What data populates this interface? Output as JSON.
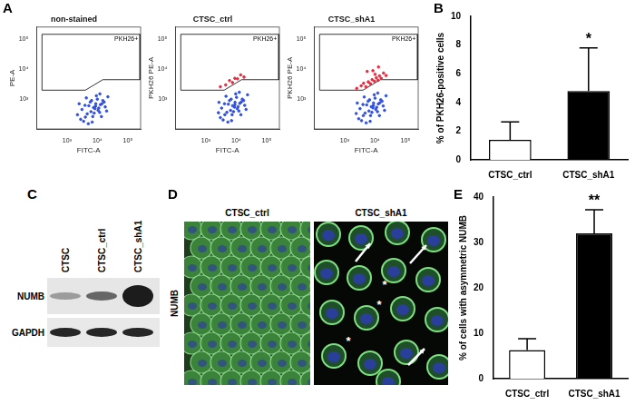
{
  "panel_labels": [
    "A",
    "B",
    "C",
    "D",
    "E"
  ],
  "chart_data": [
    {
      "type": "scatter",
      "title": "non-stained",
      "x_label": "FITC-A",
      "y_label": "PE-A",
      "log": true,
      "grid": false,
      "xlim": [
        100,
        262144
      ],
      "ylim": [
        100,
        262144
      ],
      "xticks": [
        {
          "value": 1000,
          "label": "10³"
        },
        {
          "value": 10000,
          "label": "10⁴"
        },
        {
          "value": 100000,
          "label": "10⁵"
        }
      ],
      "yticks": [
        {
          "value": 1000,
          "label": "10³"
        },
        {
          "value": 10000,
          "label": "10⁴"
        },
        {
          "value": 100000,
          "label": "10⁵"
        }
      ],
      "gate": {
        "label": "PKH26+",
        "x": [
          150,
          250000,
          250000,
          15000,
          4000,
          150,
          150
        ],
        "y": [
          150000,
          150000,
          4500,
          4500,
          2000,
          2000,
          150000
        ]
      },
      "series": [
        {
          "color": "#3050e0",
          "x": [
            2200,
            3100,
            4000,
            5200,
            6100,
            7400,
            8800,
            10500,
            12500,
            15000,
            18000,
            22000,
            3500,
            4600,
            5800,
            7000,
            8300,
            9900,
            11800,
            14000,
            2800,
            3900,
            5000,
            6400,
            7800,
            9200,
            11000,
            13500,
            16500,
            4300,
            6700,
            8600,
            12000,
            20000,
            2500
          ],
          "values": [
            300,
            450,
            250,
            600,
            380,
            520,
            700,
            420,
            650,
            900,
            550,
            1200,
            180,
            320,
            800,
            260,
            480,
            1000,
            360,
            700,
            210,
            620,
            150,
            900,
            340,
            1300,
            500,
            260,
            800,
            1100,
            170,
            580,
            1500,
            400,
            700
          ]
        }
      ]
    },
    {
      "type": "scatter",
      "title": "CTSC_ctrl",
      "x_label": "FITC-A",
      "y_label": "PKH26 PE-A",
      "log": true,
      "grid": false,
      "xlim": [
        100,
        262144
      ],
      "ylim": [
        100,
        262144
      ],
      "xticks": [
        {
          "value": 1000,
          "label": "10³"
        },
        {
          "value": 10000,
          "label": "10⁴"
        },
        {
          "value": 100000,
          "label": "10⁵"
        }
      ],
      "yticks": [
        {
          "value": 1000,
          "label": "10³"
        },
        {
          "value": 10000,
          "label": "10⁴"
        },
        {
          "value": 100000,
          "label": "10⁵"
        }
      ],
      "gate": {
        "label": "PKH26+",
        "x": [
          150,
          250000,
          250000,
          15000,
          4000,
          150,
          150
        ],
        "y": [
          150000,
          150000,
          4500,
          4500,
          2000,
          2000,
          150000
        ]
      },
      "series": [
        {
          "color": "#3050e0",
          "x": [
            2600,
            3300,
            4200,
            5500,
            6500,
            7600,
            9100,
            10800,
            13000,
            15800,
            19000,
            23500,
            3700,
            4900,
            6000,
            7300,
            8700,
            10200,
            12200,
            14600,
            3000,
            4100,
            5300,
            6800,
            8100,
            9600,
            11500,
            14200,
            17500,
            4600,
            7000,
            9000,
            12600,
            21000,
            2700
          ],
          "values": [
            350,
            500,
            300,
            680,
            420,
            600,
            780,
            480,
            720,
            1000,
            620,
            1400,
            200,
            360,
            900,
            300,
            540,
            1150,
            400,
            800,
            240,
            700,
            170,
            1000,
            380,
            1500,
            560,
            300,
            900,
            1250,
            190,
            650,
            1700,
            450,
            780
          ]
        },
        {
          "color": "#e8283c",
          "x": [
            3000,
            4500,
            6000,
            7500,
            9000,
            11000,
            14000,
            18000
          ],
          "values": [
            2600,
            3000,
            4200,
            3600,
            5000,
            4800,
            6500,
            5500
          ]
        }
      ]
    },
    {
      "type": "scatter",
      "title": "CTSC_shA1",
      "x_label": "FITC-A",
      "y_label": "PKH26 PE-A",
      "log": true,
      "grid": false,
      "xlim": [
        100,
        262144
      ],
      "ylim": [
        100,
        262144
      ],
      "xticks": [
        {
          "value": 1000,
          "label": "10³"
        },
        {
          "value": 10000,
          "label": "10⁴"
        },
        {
          "value": 100000,
          "label": "10⁵"
        }
      ],
      "yticks": [
        {
          "value": 1000,
          "label": "10³"
        },
        {
          "value": 10000,
          "label": "10⁴"
        },
        {
          "value": 100000,
          "label": "10⁵"
        }
      ],
      "gate": {
        "label": "PKH26+",
        "x": [
          150,
          250000,
          250000,
          15000,
          4000,
          150,
          150
        ],
        "y": [
          150000,
          150000,
          4500,
          4500,
          2000,
          2000,
          150000
        ]
      },
      "series": [
        {
          "color": "#3050e0",
          "x": [
            2400,
            3200,
            4100,
            5300,
            6300,
            7500,
            8900,
            10600,
            12800,
            15400,
            18500,
            23000,
            3600,
            4700,
            5900,
            7100,
            8500,
            10000,
            12000,
            14300,
            2900,
            4000,
            5100,
            6600,
            7900,
            9400,
            11300,
            13900,
            17000,
            4400,
            6900,
            8800,
            12300,
            20500,
            2600
          ],
          "values": [
            330,
            480,
            280,
            640,
            400,
            560,
            740,
            450,
            690,
            950,
            590,
            1300,
            190,
            340,
            850,
            280,
            510,
            1080,
            380,
            750,
            220,
            660,
            160,
            950,
            360,
            1400,
            530,
            280,
            850,
            1180,
            180,
            610,
            1600,
            420,
            740
          ]
        },
        {
          "color": "#e8283c",
          "x": [
            2500,
            3500,
            4200,
            5000,
            6000,
            7000,
            8000,
            9500,
            11000,
            12500,
            14000,
            16000,
            19000,
            23000,
            5500,
            8500,
            13000,
            10000
          ],
          "values": [
            2300,
            2800,
            3400,
            2600,
            3800,
            3300,
            4500,
            4000,
            5200,
            4300,
            6000,
            5000,
            7500,
            6200,
            8500,
            9000,
            12000,
            6800
          ]
        }
      ]
    },
    {
      "type": "bar",
      "y_label": "% of PKH26-positive cells",
      "grid": false,
      "categories": [
        "CTSC_ctrl",
        "CTSC_shA1"
      ],
      "values": [
        1.4,
        4.8
      ],
      "errors": [
        1.25,
        3.0
      ],
      "colors": [
        "#ffffff",
        "#000000"
      ],
      "ylim": [
        0,
        10
      ],
      "yticks": [
        0,
        2,
        4,
        6,
        8,
        10
      ],
      "annotations": [
        {
          "category": "CTSC_shA1",
          "text": "*"
        }
      ]
    },
    {
      "type": "bar",
      "y_label": "% of cells with asymmetric NUMB",
      "grid": false,
      "categories": [
        "CTSC_ctrl",
        "CTSC_shA1"
      ],
      "values": [
        6.3,
        32
      ],
      "errors": [
        2.5,
        5.2
      ],
      "colors": [
        "#ffffff",
        "#000000"
      ],
      "ylim": [
        0,
        40
      ],
      "yticks": [
        0,
        10,
        20,
        30,
        40
      ],
      "annotations": [
        {
          "category": "CTSC_shA1",
          "text": "**"
        }
      ]
    }
  ],
  "western_blot": {
    "lanes": [
      "CTSC",
      "CTSC_ctrl",
      "CTSC_shA1"
    ],
    "rows": [
      "NUMB",
      "GAPDH"
    ]
  },
  "microscopy": {
    "stain": "NUMB",
    "images": [
      {
        "title": "CTSC_ctrl",
        "annotations": []
      },
      {
        "title": "CTSC_shA1",
        "annotations": [
          "*",
          "*",
          "*"
        ]
      }
    ]
  }
}
